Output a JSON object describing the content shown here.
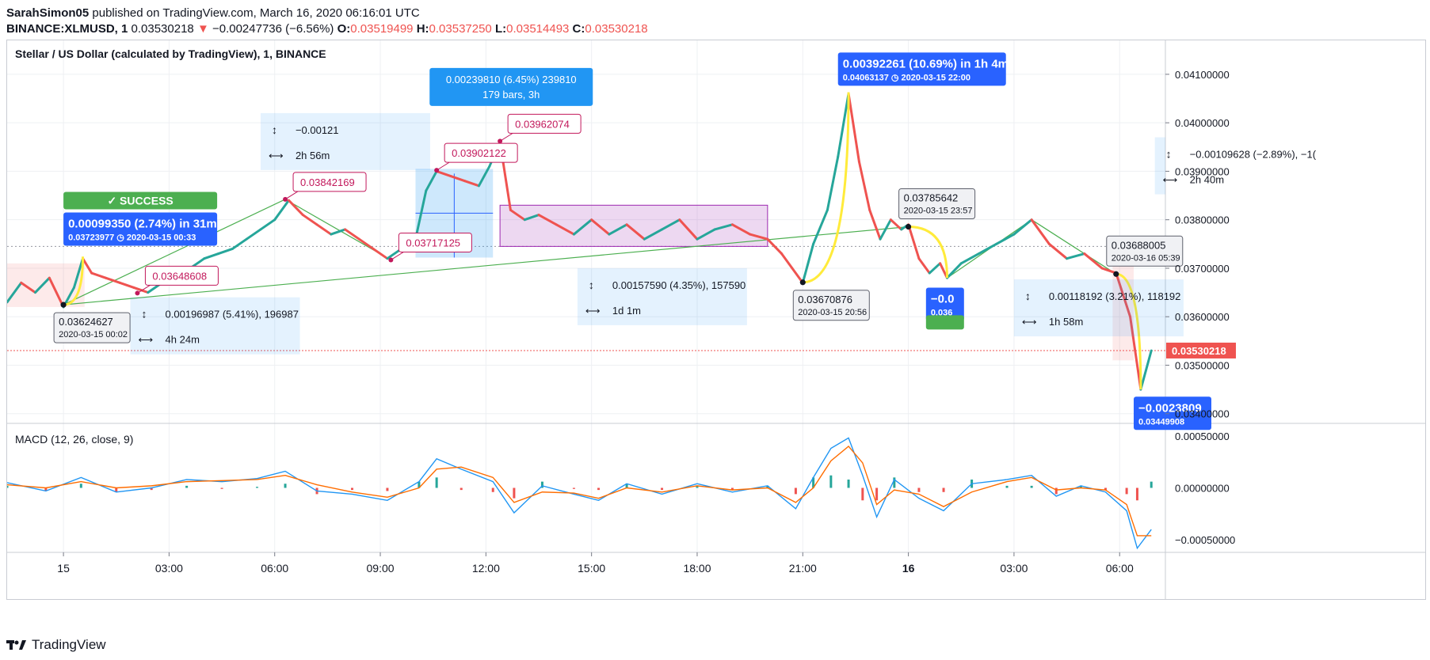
{
  "header": {
    "author": "SarahSimon05",
    "published": "published on TradingView.com, March 16, 2020 06:16:01 UTC",
    "symbol": "BINANCE:XLMUSD, 1",
    "last": "0.03530218",
    "change": "−0.00247736 (−6.56%)",
    "o_label": "O:",
    "o": "0.03519499",
    "h_label": "H:",
    "h": "0.03537250",
    "l_label": "L:",
    "l": "0.03514493",
    "c_label": "C:",
    "c": "0.03530218"
  },
  "chart_title": "Stellar / US Dollar (calculated by TradingView), 1, BINANCE",
  "macd_label": "MACD (12, 26, close, 9)",
  "footer": {
    "brand": "TradingView"
  },
  "colors": {
    "up": "#26a69a",
    "down": "#ef5350",
    "accent": "#2962ff",
    "trend": "#4caf50",
    "projection": "#ffeb3b",
    "annotation": "#c2185b"
  },
  "chart_data": {
    "type": "line",
    "title": "Stellar / US Dollar (calculated by TradingView), 1, BINANCE",
    "x_unit": "hours since 2020-03-15 00:00 UTC",
    "xlim": [
      -1.6,
      31.3
    ],
    "ylim": [
      0.0338,
      0.0417
    ],
    "y_ticks": [
      "0.03400000",
      "0.03500000",
      "0.03600000",
      "0.03700000",
      "0.03800000",
      "0.03900000",
      "0.04000000",
      "0.04100000"
    ],
    "x_ticks": [
      {
        "t": 0,
        "label": "15"
      },
      {
        "t": 3,
        "label": "03:00"
      },
      {
        "t": 6,
        "label": "06:00"
      },
      {
        "t": 9,
        "label": "09:00"
      },
      {
        "t": 12,
        "label": "12:00"
      },
      {
        "t": 15,
        "label": "15:00"
      },
      {
        "t": 18,
        "label": "18:00"
      },
      {
        "t": 21,
        "label": "21:00"
      },
      {
        "t": 24,
        "label": "16"
      },
      {
        "t": 27,
        "label": "03:00"
      },
      {
        "t": 30,
        "label": "06:00"
      }
    ],
    "current_price": "0.03530218",
    "series": [
      {
        "name": "XLMUSD",
        "points": [
          [
            -1.6,
            0.0363
          ],
          [
            -1.2,
            0.0367
          ],
          [
            -0.8,
            0.0365
          ],
          [
            -0.4,
            0.0368
          ],
          [
            0.0,
            0.0362
          ],
          [
            0.3,
            0.0366
          ],
          [
            0.55,
            0.0372
          ],
          [
            0.8,
            0.0369
          ],
          [
            1.2,
            0.0368
          ],
          [
            1.6,
            0.0367
          ],
          [
            2.0,
            0.0366
          ],
          [
            2.4,
            0.0365
          ],
          [
            2.8,
            0.0367
          ],
          [
            3.2,
            0.0369
          ],
          [
            3.6,
            0.037
          ],
          [
            4.0,
            0.0372
          ],
          [
            4.4,
            0.0373
          ],
          [
            4.8,
            0.0374
          ],
          [
            5.2,
            0.0376
          ],
          [
            5.6,
            0.0378
          ],
          [
            6.0,
            0.038
          ],
          [
            6.4,
            0.0384
          ],
          [
            6.8,
            0.0381
          ],
          [
            7.2,
            0.0379
          ],
          [
            7.6,
            0.0377
          ],
          [
            8.0,
            0.0378
          ],
          [
            8.4,
            0.0376
          ],
          [
            8.8,
            0.0374
          ],
          [
            9.2,
            0.0372
          ],
          [
            9.6,
            0.0374
          ],
          [
            10.0,
            0.0376
          ],
          [
            10.3,
            0.0386
          ],
          [
            10.6,
            0.039
          ],
          [
            11.0,
            0.0389
          ],
          [
            11.4,
            0.0388
          ],
          [
            11.8,
            0.0387
          ],
          [
            12.1,
            0.0391
          ],
          [
            12.4,
            0.0396
          ],
          [
            12.7,
            0.0382
          ],
          [
            13.1,
            0.038
          ],
          [
            13.5,
            0.0381
          ],
          [
            14.0,
            0.0379
          ],
          [
            14.5,
            0.0377
          ],
          [
            15.0,
            0.038
          ],
          [
            15.5,
            0.0377
          ],
          [
            16.0,
            0.0379
          ],
          [
            16.5,
            0.0376
          ],
          [
            17.0,
            0.0378
          ],
          [
            17.5,
            0.038
          ],
          [
            18.0,
            0.0376
          ],
          [
            18.5,
            0.0378
          ],
          [
            19.0,
            0.0379
          ],
          [
            19.5,
            0.0377
          ],
          [
            20.0,
            0.0376
          ],
          [
            20.4,
            0.0373
          ],
          [
            20.7,
            0.037
          ],
          [
            21.0,
            0.0367
          ],
          [
            21.3,
            0.0375
          ],
          [
            21.7,
            0.0382
          ],
          [
            22.0,
            0.0393
          ],
          [
            22.3,
            0.0406
          ],
          [
            22.6,
            0.0392
          ],
          [
            22.9,
            0.0382
          ],
          [
            23.2,
            0.0376
          ],
          [
            23.5,
            0.038
          ],
          [
            23.8,
            0.0378
          ],
          [
            24.0,
            0.0379
          ],
          [
            24.3,
            0.0372
          ],
          [
            24.6,
            0.0369
          ],
          [
            24.9,
            0.0371
          ],
          [
            25.1,
            0.0368
          ],
          [
            25.5,
            0.0371
          ],
          [
            26.0,
            0.0373
          ],
          [
            26.5,
            0.0375
          ],
          [
            27.0,
            0.0377
          ],
          [
            27.5,
            0.038
          ],
          [
            28.0,
            0.0375
          ],
          [
            28.5,
            0.0372
          ],
          [
            29.0,
            0.0373
          ],
          [
            29.5,
            0.037
          ],
          [
            29.9,
            0.0369
          ],
          [
            30.3,
            0.036
          ],
          [
            30.6,
            0.0345
          ],
          [
            30.9,
            0.0353
          ]
        ]
      }
    ],
    "annotations": {
      "price_labels": [
        {
          "t": 0.0,
          "y": 0.03624627,
          "text": "0.03624627",
          "time": "2020-03-15 00:02"
        },
        {
          "t": 2.1,
          "y": 0.03648608,
          "text": "0.03648608"
        },
        {
          "t": 6.3,
          "y": 0.03842169,
          "text": "0.03842169"
        },
        {
          "t": 9.3,
          "y": 0.03717125,
          "text": "0.03717125"
        },
        {
          "t": 10.6,
          "y": 0.03902122,
          "text": "0.03902122"
        },
        {
          "t": 12.4,
          "y": 0.03962074,
          "text": "0.03962074"
        },
        {
          "t": 21.0,
          "y": 0.03670876,
          "text": "0.03670876",
          "time": "2020-03-15 20:56"
        },
        {
          "t": 24.0,
          "y": 0.03785642,
          "text": "0.03785642",
          "time": "2020-03-15 23:57"
        },
        {
          "t": 29.9,
          "y": 0.03688005,
          "text": "0.03688005",
          "time": "2020-03-16 05:39"
        }
      ],
      "forecasts": [
        {
          "text": "0.00099350 (2.74%) in 31m",
          "sub": "0.03723977 ◷ 2020-03-15  00:33",
          "status": "✓ SUCCESS"
        },
        {
          "text": "0.00392261 (10.69%) in 1h 4m",
          "sub": "0.04063137 ◷ 2020-03-15  22:00"
        },
        {
          "text": "−0.0023809",
          "sub": "0.03449908"
        },
        {
          "text": "−0.0",
          "sub": "0.036"
        }
      ],
      "measures": [
        {
          "delta": "0.00196987 (5.41%), 196987",
          "span": "4h 24m"
        },
        {
          "delta": "−0.00121",
          "span": "2h 56m"
        },
        {
          "delta": "0.00239810 (6.45%) 239810",
          "span": "179 bars, 3h"
        },
        {
          "delta": "0.00157590 (4.35%), 157590",
          "span": "1d 1m"
        },
        {
          "delta": "0.00118192 (3.21%), 118192",
          "span": "1h 58m"
        },
        {
          "delta": "−0.00109628 (−2.89%), −1(",
          "span": "2h 40m"
        }
      ]
    },
    "macd": {
      "label": "MACD (12, 26, close, 9)",
      "ylim": [
        -0.00062,
        0.00062
      ],
      "y_ticks": [
        "0.00050000",
        "0.00000000",
        "−0.00050000"
      ],
      "macd_line": [
        [
          -1.6,
          5e-05
        ],
        [
          -0.5,
          -3e-05
        ],
        [
          0.5,
          0.0001
        ],
        [
          1.5,
          -4e-05
        ],
        [
          2.5,
          0.0
        ],
        [
          3.5,
          8e-05
        ],
        [
          4.5,
          6e-05
        ],
        [
          5.5,
          9e-05
        ],
        [
          6.3,
          0.00016
        ],
        [
          7.2,
          -3e-05
        ],
        [
          8.2,
          -6e-05
        ],
        [
          9.2,
          -0.00012
        ],
        [
          10.1,
          6e-05
        ],
        [
          10.6,
          0.00028
        ],
        [
          11.3,
          0.00018
        ],
        [
          12.2,
          6e-05
        ],
        [
          12.8,
          -0.00024
        ],
        [
          13.6,
          2e-05
        ],
        [
          14.5,
          -6e-05
        ],
        [
          15.2,
          -0.00012
        ],
        [
          16.0,
          4e-05
        ],
        [
          17.0,
          -6e-05
        ],
        [
          18.0,
          4e-05
        ],
        [
          19.0,
          -4e-05
        ],
        [
          20.0,
          2e-05
        ],
        [
          20.8,
          -0.0002
        ],
        [
          21.3,
          0.0001
        ],
        [
          21.8,
          0.00038
        ],
        [
          22.3,
          0.00048
        ],
        [
          22.7,
          0.00012
        ],
        [
          23.1,
          -0.00028
        ],
        [
          23.6,
          8e-05
        ],
        [
          24.3,
          -0.0001
        ],
        [
          25.0,
          -0.00022
        ],
        [
          25.8,
          4e-05
        ],
        [
          26.8,
          8e-05
        ],
        [
          27.5,
          0.00012
        ],
        [
          28.2,
          -8e-05
        ],
        [
          28.9,
          2e-05
        ],
        [
          29.6,
          -4e-05
        ],
        [
          30.2,
          -0.00022
        ],
        [
          30.5,
          -0.00058
        ],
        [
          30.9,
          -0.0004
        ]
      ],
      "signal_line": [
        [
          -1.6,
          3e-05
        ],
        [
          -0.5,
          0.0
        ],
        [
          0.5,
          6e-05
        ],
        [
          1.5,
          0.0
        ],
        [
          2.5,
          2e-05
        ],
        [
          3.5,
          6e-05
        ],
        [
          4.5,
          7e-05
        ],
        [
          5.5,
          8e-05
        ],
        [
          6.3,
          0.00012
        ],
        [
          7.2,
          3e-05
        ],
        [
          8.2,
          -4e-05
        ],
        [
          9.2,
          -9e-05
        ],
        [
          10.1,
          0.0
        ],
        [
          10.6,
          0.00018
        ],
        [
          11.3,
          0.0002
        ],
        [
          12.2,
          0.0001
        ],
        [
          12.8,
          -0.00014
        ],
        [
          13.6,
          -4e-05
        ],
        [
          14.5,
          -5e-05
        ],
        [
          15.2,
          -0.0001
        ],
        [
          16.0,
          0.0
        ],
        [
          17.0,
          -4e-05
        ],
        [
          18.0,
          2e-05
        ],
        [
          19.0,
          -2e-05
        ],
        [
          20.0,
          0.0
        ],
        [
          20.8,
          -0.00014
        ],
        [
          21.3,
          0.0
        ],
        [
          21.8,
          0.00026
        ],
        [
          22.3,
          0.0004
        ],
        [
          22.7,
          0.00024
        ],
        [
          23.1,
          -0.00016
        ],
        [
          23.6,
          -2e-05
        ],
        [
          24.3,
          -6e-05
        ],
        [
          25.0,
          -0.00018
        ],
        [
          25.8,
          -4e-05
        ],
        [
          26.8,
          6e-05
        ],
        [
          27.5,
          0.0001
        ],
        [
          28.2,
          -2e-05
        ],
        [
          28.9,
          0.0
        ],
        [
          29.6,
          -2e-05
        ],
        [
          30.2,
          -0.00016
        ],
        [
          30.5,
          -0.00046
        ],
        [
          30.9,
          -0.00046
        ]
      ]
    }
  }
}
